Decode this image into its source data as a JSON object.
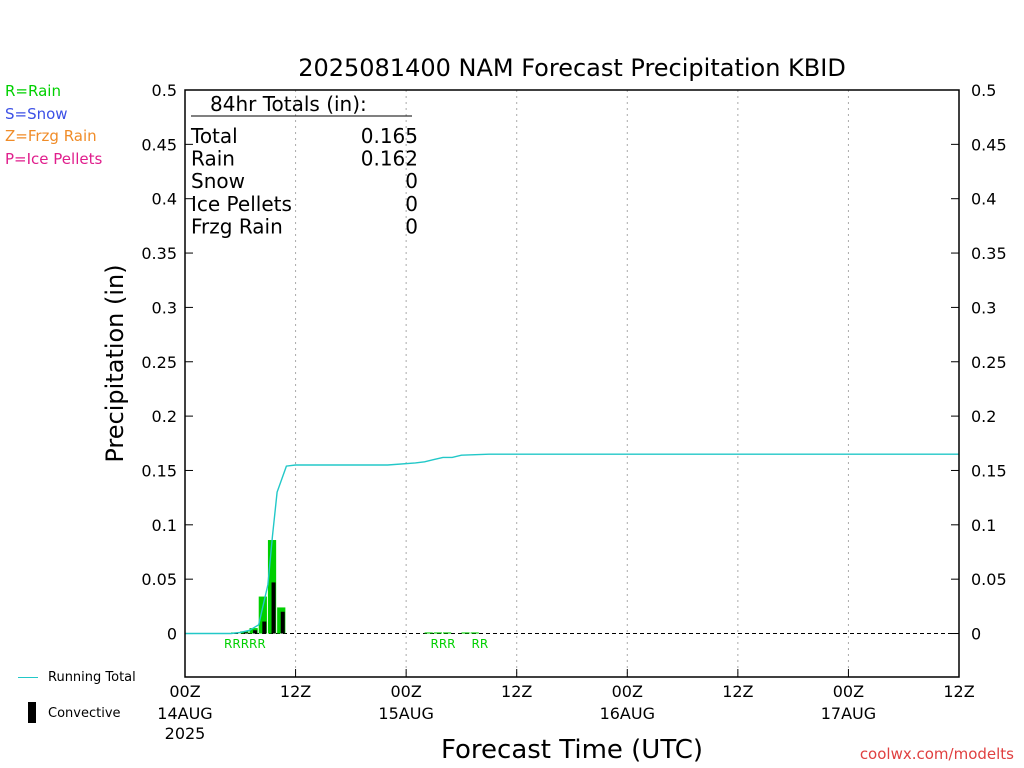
{
  "chart_data": {
    "type": "bar",
    "title": "2025081400 NAM Forecast Precipitation KBID",
    "xlabel": "Forecast Time (UTC)",
    "ylabel": "Precipitation (in)",
    "ylim": [
      -0.04,
      0.5
    ],
    "xlim_hours": [
      0,
      84
    ],
    "y_ticks": [
      "0",
      "0.05",
      "0.1",
      "0.15",
      "0.2",
      "0.25",
      "0.3",
      "0.35",
      "0.4",
      "0.45",
      "0.5"
    ],
    "x_ticks": [
      {
        "hour": 0,
        "line1": "00Z",
        "line2": "14AUG",
        "line3": "2025"
      },
      {
        "hour": 12,
        "line1": "12Z",
        "line2": "",
        "line3": ""
      },
      {
        "hour": 24,
        "line1": "00Z",
        "line2": "15AUG",
        "line3": ""
      },
      {
        "hour": 36,
        "line1": "12Z",
        "line2": "",
        "line3": ""
      },
      {
        "hour": 48,
        "line1": "00Z",
        "line2": "16AUG",
        "line3": ""
      },
      {
        "hour": 60,
        "line1": "12Z",
        "line2": "",
        "line3": ""
      },
      {
        "hour": 72,
        "line1": "00Z",
        "line2": "17AUG",
        "line3": ""
      },
      {
        "hour": 84,
        "line1": "12Z",
        "line2": "",
        "line3": ""
      }
    ],
    "grid": "vertical dotted",
    "series": [
      {
        "name": "Running Total",
        "type": "line",
        "color": "#22c8c8",
        "x": [
          0,
          5,
          6,
          7,
          8,
          9,
          9.5,
          10,
          11,
          12,
          22,
          25,
          26,
          27,
          28,
          29,
          30,
          33,
          36,
          48,
          60,
          72,
          84
        ],
        "y": [
          0,
          0,
          0.001,
          0.003,
          0.008,
          0.045,
          0.09,
          0.13,
          0.154,
          0.155,
          0.155,
          0.157,
          0.158,
          0.16,
          0.162,
          0.162,
          0.164,
          0.165,
          0.165,
          0.165,
          0.165,
          0.165,
          0.165
        ]
      },
      {
        "name": "Rain",
        "type": "bar",
        "color": "#00d000",
        "x": [
          6,
          7,
          8,
          9,
          10,
          11,
          27,
          28,
          29,
          31,
          32
        ],
        "y": [
          0.001,
          0.002,
          0.005,
          0.034,
          0.086,
          0.024,
          0.001,
          0.001,
          0.001,
          0.001,
          0.001
        ]
      },
      {
        "name": "Convective",
        "type": "bar",
        "color": "#000000",
        "x": [
          7,
          8,
          9,
          10,
          11
        ],
        "y": [
          0.001,
          0.003,
          0.011,
          0.047,
          0.02
        ]
      }
    ],
    "ptype_labels": [
      {
        "x": 6.5,
        "text": "RRRRR"
      },
      {
        "x": 28,
        "text": "RRR"
      },
      {
        "x": 32,
        "text": "RR"
      }
    ],
    "totals_box": {
      "header": "84hr Totals (in):",
      "rows": [
        {
          "label": "Total",
          "value": "0.165"
        },
        {
          "label": "Rain",
          "value": "0.162"
        },
        {
          "label": "Snow",
          "value": "0"
        },
        {
          "label": "Ice Pellets",
          "value": "0"
        },
        {
          "label": "Frzg Rain",
          "value": "0"
        }
      ]
    }
  },
  "ptype_legend": [
    {
      "text": "R=Rain",
      "color": "#00d000"
    },
    {
      "text": "S=Snow",
      "color": "#3c50e6"
    },
    {
      "text": "Z=Frzg Rain",
      "color": "#f08c28"
    },
    {
      "text": "P=Ice Pellets",
      "color": "#e01e8c"
    }
  ],
  "legend": {
    "running_total": "Running Total",
    "convective": "Convective"
  },
  "credit": "coolwx.com/modelts"
}
